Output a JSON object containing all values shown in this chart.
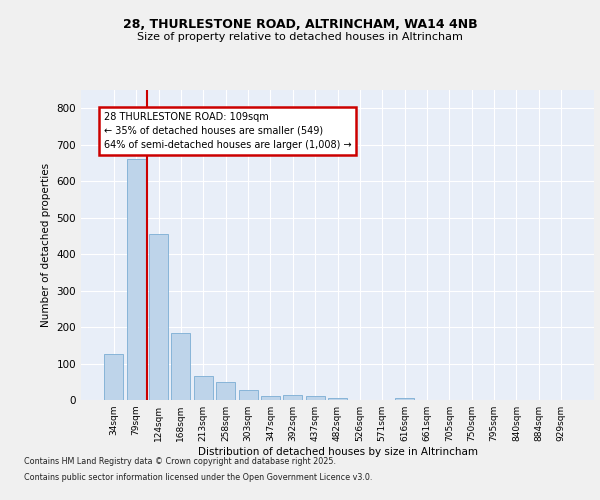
{
  "title_line1": "28, THURLESTONE ROAD, ALTRINCHAM, WA14 4NB",
  "title_line2": "Size of property relative to detached houses in Altrincham",
  "xlabel": "Distribution of detached houses by size in Altrincham",
  "ylabel": "Number of detached properties",
  "categories": [
    "34sqm",
    "79sqm",
    "124sqm",
    "168sqm",
    "213sqm",
    "258sqm",
    "303sqm",
    "347sqm",
    "392sqm",
    "437sqm",
    "482sqm",
    "526sqm",
    "571sqm",
    "616sqm",
    "661sqm",
    "705sqm",
    "750sqm",
    "795sqm",
    "840sqm",
    "884sqm",
    "929sqm"
  ],
  "values": [
    125,
    660,
    455,
    185,
    65,
    50,
    28,
    12,
    15,
    12,
    5,
    0,
    0,
    5,
    0,
    0,
    0,
    0,
    0,
    0,
    0
  ],
  "bar_color": "#bed4ea",
  "bar_edge_color": "#7badd4",
  "vline_x_index": 1.5,
  "vline_color": "#cc0000",
  "annotation_text": "28 THURLESTONE ROAD: 109sqm\n← 35% of detached houses are smaller (549)\n64% of semi-detached houses are larger (1,008) →",
  "annotation_box_color": "#cc0000",
  "ylim": [
    0,
    850
  ],
  "yticks": [
    0,
    100,
    200,
    300,
    400,
    500,
    600,
    700,
    800
  ],
  "plot_bg_color": "#e8eef8",
  "fig_bg_color": "#f0f0f0",
  "grid_color": "#ffffff",
  "footer_line1": "Contains HM Land Registry data © Crown copyright and database right 2025.",
  "footer_line2": "Contains public sector information licensed under the Open Government Licence v3.0."
}
